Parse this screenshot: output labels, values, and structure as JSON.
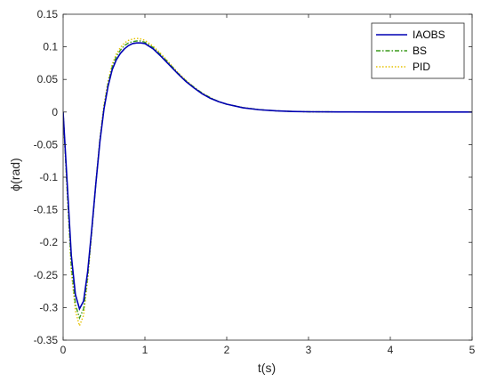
{
  "chart_data": {
    "type": "line",
    "xlabel": "t(s)",
    "ylabel": "ϕ(rad)",
    "xlim": [
      0,
      5
    ],
    "ylim": [
      -0.35,
      0.15
    ],
    "xticks": [
      0,
      1,
      2,
      3,
      4,
      5
    ],
    "yticks": [
      -0.35,
      -0.3,
      -0.25,
      -0.2,
      -0.15,
      -0.1,
      -0.05,
      0,
      0.05,
      0.1,
      0.15
    ],
    "xtick_labels": [
      "0",
      "1",
      "2",
      "3",
      "4",
      "5"
    ],
    "ytick_labels": [
      "-0.35",
      "-0.3",
      "-0.25",
      "-0.2",
      "-0.15",
      "-0.1",
      "-0.05",
      "0",
      "0.05",
      "0.1",
      "0.15"
    ],
    "grid": false,
    "legend_position": "top-right",
    "series": [
      {
        "name": "IAOBS",
        "color": "#0000b3",
        "style": "solid",
        "x": [
          0,
          0.05,
          0.1,
          0.15,
          0.2,
          0.25,
          0.3,
          0.35,
          0.4,
          0.45,
          0.5,
          0.55,
          0.6,
          0.65,
          0.7,
          0.75,
          0.8,
          0.85,
          0.9,
          0.95,
          1.0,
          1.1,
          1.2,
          1.3,
          1.4,
          1.5,
          1.6,
          1.7,
          1.8,
          1.9,
          2.0,
          2.2,
          2.4,
          2.6,
          2.8,
          3.0,
          3.5,
          4.0,
          4.5,
          5.0
        ],
        "y": [
          0,
          -0.11,
          -0.22,
          -0.28,
          -0.302,
          -0.29,
          -0.245,
          -0.18,
          -0.11,
          -0.045,
          0.005,
          0.04,
          0.065,
          0.08,
          0.09,
          0.097,
          0.102,
          0.105,
          0.106,
          0.106,
          0.105,
          0.097,
          0.085,
          0.072,
          0.059,
          0.047,
          0.037,
          0.028,
          0.021,
          0.016,
          0.012,
          0.0065,
          0.0035,
          0.0018,
          0.0009,
          0.0004,
          0.0001,
          0,
          0,
          0
        ]
      },
      {
        "name": "BS",
        "color": "#3a9a1a",
        "style": "dashdot",
        "x": [
          0,
          0.05,
          0.1,
          0.15,
          0.2,
          0.25,
          0.3,
          0.35,
          0.4,
          0.45,
          0.5,
          0.55,
          0.6,
          0.65,
          0.7,
          0.75,
          0.8,
          0.85,
          0.9,
          0.95,
          1.0,
          1.1,
          1.2,
          1.3,
          1.4,
          1.5,
          1.6,
          1.7,
          1.8,
          1.9,
          2.0,
          2.2,
          2.4,
          2.6,
          2.8,
          3.0,
          3.5,
          4.0,
          4.5,
          5.0
        ],
        "y": [
          0,
          -0.12,
          -0.235,
          -0.295,
          -0.316,
          -0.302,
          -0.252,
          -0.183,
          -0.11,
          -0.043,
          0.008,
          0.044,
          0.069,
          0.085,
          0.095,
          0.102,
          0.106,
          0.108,
          0.109,
          0.109,
          0.107,
          0.099,
          0.087,
          0.074,
          0.06,
          0.048,
          0.038,
          0.029,
          0.022,
          0.016,
          0.012,
          0.0067,
          0.0036,
          0.0018,
          0.0009,
          0.0004,
          0.0001,
          0,
          0,
          0
        ]
      },
      {
        "name": "PID",
        "color": "#e6c200",
        "style": "dotted",
        "x": [
          0,
          0.05,
          0.1,
          0.15,
          0.2,
          0.25,
          0.3,
          0.35,
          0.4,
          0.45,
          0.5,
          0.55,
          0.6,
          0.65,
          0.7,
          0.75,
          0.8,
          0.85,
          0.9,
          0.95,
          1.0,
          1.1,
          1.2,
          1.3,
          1.4,
          1.5,
          1.6,
          1.7,
          1.8,
          1.9,
          2.0,
          2.2,
          2.4,
          2.6,
          2.8,
          3.0,
          3.5,
          4.0,
          4.5,
          5.0
        ],
        "y": [
          0,
          -0.125,
          -0.245,
          -0.305,
          -0.328,
          -0.312,
          -0.258,
          -0.185,
          -0.108,
          -0.04,
          0.012,
          0.048,
          0.073,
          0.089,
          0.099,
          0.106,
          0.11,
          0.112,
          0.113,
          0.112,
          0.11,
          0.101,
          0.089,
          0.075,
          0.061,
          0.049,
          0.038,
          0.029,
          0.022,
          0.016,
          0.012,
          0.0068,
          0.0036,
          0.0018,
          0.0009,
          0.0004,
          0.0001,
          0,
          0,
          0
        ]
      }
    ]
  }
}
